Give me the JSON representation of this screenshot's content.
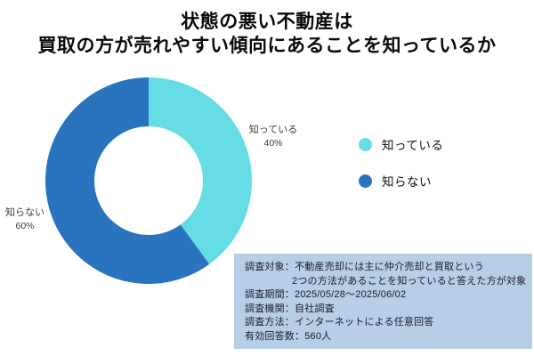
{
  "title": {
    "line1": "状態の悪い不動産は",
    "line2": "買取の方が売れやすい傾向にあることを知っているか"
  },
  "chart_data": {
    "type": "pie",
    "subtype": "donut",
    "title": "状態の悪い不動産は 買取の方が売れやすい傾向にあることを知っているか",
    "categories": [
      "知っている",
      "知らない"
    ],
    "values": [
      40,
      60
    ],
    "unit": "%",
    "colors": [
      "#66DDE4",
      "#2A73BE"
    ],
    "start_angle_deg": 0,
    "direction": "clockwise",
    "inner_radius_ratio": 0.53,
    "legend_position": "right",
    "labels": [
      {
        "text": "知っている",
        "pct": "40%"
      },
      {
        "text": "知らない",
        "pct": "60%"
      }
    ]
  },
  "legend": {
    "items": [
      {
        "label": "知っている",
        "color": "#66DDE4"
      },
      {
        "label": "知らない",
        "color": "#2A73BE"
      }
    ]
  },
  "survey_box": {
    "bg": "#B6CEE6",
    "lines": [
      "調査対象：不動産売却には主に仲介売却と買取という",
      "2つの方法があることを知っていると答えた方が対象",
      "調査期間：2025/05/28～2025/06/02",
      "調査機関：自社調査",
      "調査方法：インターネットによる任意回答",
      "有効回答数：560人"
    ]
  }
}
